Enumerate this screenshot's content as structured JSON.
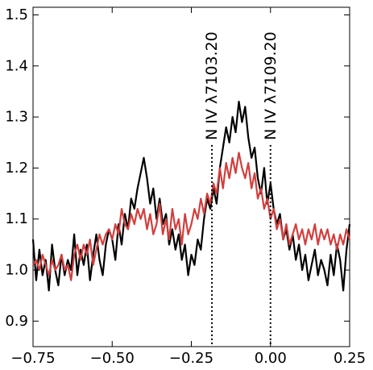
{
  "chart_data": {
    "type": "line",
    "title": "",
    "xlabel": "",
    "ylabel": "",
    "xlim": [
      -0.75,
      0.25
    ],
    "ylim": [
      0.85,
      1.515
    ],
    "x_ticks": [
      -0.75,
      -0.5,
      -0.25,
      0.0,
      0.25
    ],
    "x_tick_labels": [
      "−0.75",
      "−0.50",
      "−0.25",
      "0.00",
      "0.25"
    ],
    "y_ticks": [
      0.9,
      1.0,
      1.1,
      1.2,
      1.3,
      1.4,
      1.5
    ],
    "y_tick_labels": [
      "0.9",
      "1.0",
      "1.1",
      "1.2",
      "1.3",
      "1.4",
      "1.5"
    ],
    "grid": false,
    "legend": "none",
    "series": [
      {
        "color": "#000000",
        "x": [
          -0.75,
          -0.74,
          -0.73,
          -0.72,
          -0.71,
          -0.7,
          -0.69,
          -0.68,
          -0.67,
          -0.66,
          -0.65,
          -0.64,
          -0.63,
          -0.62,
          -0.61,
          -0.6,
          -0.59,
          -0.58,
          -0.57,
          -0.56,
          -0.55,
          -0.54,
          -0.53,
          -0.52,
          -0.51,
          -0.5,
          -0.49,
          -0.48,
          -0.47,
          -0.46,
          -0.45,
          -0.44,
          -0.43,
          -0.42,
          -0.41,
          -0.4,
          -0.39,
          -0.38,
          -0.37,
          -0.36,
          -0.35,
          -0.34,
          -0.33,
          -0.32,
          -0.31,
          -0.3,
          -0.29,
          -0.28,
          -0.27,
          -0.26,
          -0.25,
          -0.24,
          -0.23,
          -0.22,
          -0.21,
          -0.2,
          -0.19,
          -0.18,
          -0.17,
          -0.16,
          -0.15,
          -0.14,
          -0.13,
          -0.12,
          -0.11,
          -0.1,
          -0.09,
          -0.08,
          -0.07,
          -0.06,
          -0.05,
          -0.04,
          -0.03,
          -0.02,
          -0.01,
          0.0,
          0.01,
          0.02,
          0.03,
          0.04,
          0.05,
          0.06,
          0.07,
          0.08,
          0.09,
          0.1,
          0.11,
          0.12,
          0.13,
          0.14,
          0.15,
          0.16,
          0.17,
          0.18,
          0.19,
          0.2,
          0.21,
          0.22,
          0.23,
          0.24,
          0.25
        ],
        "y": [
          1.06,
          0.98,
          1.04,
          0.99,
          1.02,
          0.96,
          1.05,
          1.0,
          0.97,
          1.03,
          0.99,
          1.02,
          1.0,
          1.07,
          0.99,
          1.04,
          1.01,
          1.05,
          0.98,
          1.03,
          1.07,
          1.02,
          0.99,
          1.05,
          1.08,
          1.06,
          1.02,
          1.09,
          1.05,
          1.11,
          1.08,
          1.14,
          1.12,
          1.16,
          1.19,
          1.22,
          1.18,
          1.13,
          1.16,
          1.1,
          1.14,
          1.09,
          1.11,
          1.05,
          1.08,
          1.04,
          1.07,
          1.02,
          1.05,
          0.99,
          1.03,
          1.01,
          1.06,
          1.04,
          1.1,
          1.14,
          1.12,
          1.16,
          1.13,
          1.2,
          1.24,
          1.28,
          1.25,
          1.3,
          1.27,
          1.33,
          1.29,
          1.32,
          1.26,
          1.22,
          1.24,
          1.18,
          1.15,
          1.2,
          1.13,
          1.17,
          1.12,
          1.09,
          1.11,
          1.06,
          1.08,
          1.04,
          1.07,
          1.02,
          1.05,
          1.0,
          1.03,
          0.98,
          1.01,
          1.04,
          0.99,
          1.02,
          1.0,
          0.97,
          1.03,
          0.99,
          1.05,
          1.02,
          0.96,
          1.04,
          1.09
        ]
      },
      {
        "color": "#d04040",
        "x": [
          -0.75,
          -0.74,
          -0.73,
          -0.72,
          -0.71,
          -0.7,
          -0.69,
          -0.68,
          -0.67,
          -0.66,
          -0.65,
          -0.64,
          -0.63,
          -0.62,
          -0.61,
          -0.6,
          -0.59,
          -0.58,
          -0.57,
          -0.56,
          -0.55,
          -0.54,
          -0.53,
          -0.52,
          -0.51,
          -0.5,
          -0.49,
          -0.48,
          -0.47,
          -0.46,
          -0.45,
          -0.44,
          -0.43,
          -0.42,
          -0.41,
          -0.4,
          -0.39,
          -0.38,
          -0.37,
          -0.36,
          -0.35,
          -0.34,
          -0.33,
          -0.32,
          -0.31,
          -0.3,
          -0.29,
          -0.28,
          -0.27,
          -0.26,
          -0.25,
          -0.24,
          -0.23,
          -0.22,
          -0.21,
          -0.2,
          -0.19,
          -0.18,
          -0.17,
          -0.16,
          -0.15,
          -0.14,
          -0.13,
          -0.12,
          -0.11,
          -0.1,
          -0.09,
          -0.08,
          -0.07,
          -0.06,
          -0.05,
          -0.04,
          -0.03,
          -0.02,
          -0.01,
          0.0,
          0.01,
          0.02,
          0.03,
          0.04,
          0.05,
          0.06,
          0.07,
          0.08,
          0.09,
          0.1,
          0.11,
          0.12,
          0.13,
          0.14,
          0.15,
          0.16,
          0.17,
          0.18,
          0.19,
          0.2,
          0.21,
          0.22,
          0.23,
          0.24,
          0.25
        ],
        "y": [
          1.01,
          1.02,
          1.0,
          1.03,
          1.01,
          0.99,
          1.02,
          1.0,
          1.01,
          1.03,
          1.0,
          1.01,
          0.98,
          1.03,
          1.05,
          1.02,
          1.05,
          1.03,
          1.06,
          1.01,
          1.04,
          1.07,
          1.05,
          1.07,
          1.08,
          1.06,
          1.09,
          1.07,
          1.12,
          1.09,
          1.08,
          1.11,
          1.09,
          1.12,
          1.1,
          1.12,
          1.08,
          1.11,
          1.07,
          1.09,
          1.13,
          1.07,
          1.1,
          1.06,
          1.12,
          1.08,
          1.1,
          1.05,
          1.11,
          1.07,
          1.09,
          1.12,
          1.1,
          1.14,
          1.11,
          1.15,
          1.13,
          1.17,
          1.15,
          1.2,
          1.16,
          1.21,
          1.18,
          1.22,
          1.19,
          1.23,
          1.2,
          1.18,
          1.21,
          1.16,
          1.19,
          1.14,
          1.16,
          1.12,
          1.14,
          1.1,
          1.12,
          1.08,
          1.1,
          1.06,
          1.09,
          1.05,
          1.07,
          1.09,
          1.06,
          1.08,
          1.05,
          1.08,
          1.06,
          1.09,
          1.05,
          1.08,
          1.06,
          1.08,
          1.05,
          1.07,
          1.04,
          1.07,
          1.05,
          1.08,
          1.06
        ]
      }
    ],
    "annotations": [
      {
        "text": "N IV λ7103.20",
        "x": -0.185,
        "y_top": 1.245
      },
      {
        "text": "N IV λ7109.20",
        "x": 0.0,
        "y_top": 1.245
      }
    ]
  }
}
